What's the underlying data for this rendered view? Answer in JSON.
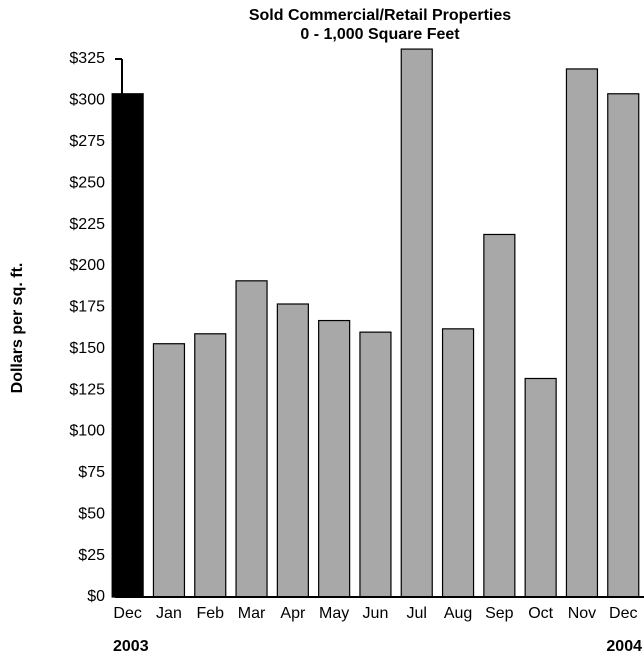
{
  "chart_data": {
    "type": "bar",
    "title": "Sold Commercial/Retail Properties",
    "subtitle": "0 - 1,000 Square Feet",
    "y_label": "Dollars per sq. ft.",
    "categories": [
      "Dec",
      "Jan",
      "Feb",
      "Mar",
      "Apr",
      "May",
      "Jun",
      "Jul",
      "Aug",
      "Sep",
      "Oct",
      "Nov",
      "Dec"
    ],
    "values": [
      304,
      153,
      159,
      191,
      177,
      167,
      160,
      331,
      162,
      219,
      132,
      319,
      304
    ],
    "colors": [
      "#000000",
      "#a8a8a8",
      "#a8a8a8",
      "#a8a8a8",
      "#a8a8a8",
      "#a8a8a8",
      "#a8a8a8",
      "#a8a8a8",
      "#a8a8a8",
      "#a8a8a8",
      "#a8a8a8",
      "#a8a8a8",
      "#a8a8a8"
    ],
    "annotations": [
      "2003",
      "2004"
    ],
    "ylim": [
      0,
      325
    ],
    "yticks": [
      {
        "value": 0,
        "label": "$0"
      },
      {
        "value": 25,
        "label": "$25"
      },
      {
        "value": 50,
        "label": "$50"
      },
      {
        "value": 75,
        "label": "$75"
      },
      {
        "value": 100,
        "label": "$100"
      },
      {
        "value": 125,
        "label": "$125"
      },
      {
        "value": 150,
        "label": "$150"
      },
      {
        "value": 175,
        "label": "$175"
      },
      {
        "value": 200,
        "label": "$200"
      },
      {
        "value": 225,
        "label": "$225"
      },
      {
        "value": 250,
        "label": "$250"
      },
      {
        "value": 275,
        "label": "$275"
      },
      {
        "value": 300,
        "label": "$300"
      },
      {
        "value": 325,
        "label": "$325"
      }
    ],
    "grid": false
  }
}
